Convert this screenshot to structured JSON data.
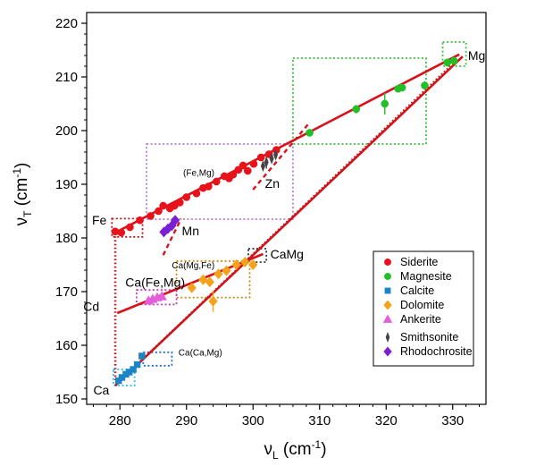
{
  "chart_data": {
    "type": "scatter",
    "xlabel": {
      "symbol": "ν",
      "sub": "L",
      "unit": " (cm",
      "sup": "-1",
      "close": ")"
    },
    "ylabel": {
      "symbol": "ν",
      "sub": "T",
      "unit": " (cm",
      "sup": "-1",
      "close": ")"
    },
    "xlim": [
      275,
      335
    ],
    "ylim": [
      149,
      222
    ],
    "xticks": [
      280,
      290,
      300,
      310,
      320,
      330
    ],
    "yticks": [
      150,
      160,
      170,
      180,
      190,
      200,
      210,
      220
    ],
    "xtick_labels": [
      "280",
      "290",
      "300",
      "310",
      "320",
      "330"
    ],
    "ytick_labels": [
      "150",
      "160",
      "170",
      "180",
      "190",
      "200",
      "210",
      "220"
    ],
    "grid": false,
    "legend_position": "bottom-right",
    "legend": [
      {
        "label": "Siderite",
        "marker": "circle",
        "color": "#e8121b"
      },
      {
        "label": "Magnesite",
        "marker": "circle",
        "color": "#23bf27"
      },
      {
        "label": "Calcite",
        "marker": "square",
        "color": "#1b84c7"
      },
      {
        "label": "Dolomite",
        "marker": "diamond",
        "color": "#f5a21b"
      },
      {
        "label": "Ankerite",
        "marker": "triangle",
        "color": "#e45ed9"
      },
      {
        "label": "Smithsonite",
        "marker": "thin-diamond",
        "color": "#444444"
      },
      {
        "label": "Rhodochrosite",
        "marker": "diamond",
        "color": "#7a1fd2"
      }
    ],
    "series": [
      {
        "name": "Siderite",
        "marker": "circle",
        "color": "#e8121b",
        "x": [
          279.3,
          280.2,
          281.5,
          283.0,
          284.6,
          285.8,
          286.5,
          287.5,
          288.2,
          289.0,
          290.0,
          291.5,
          292.5,
          293.3,
          294.5,
          295.7,
          296.4,
          297.0,
          297.8,
          298.5,
          299.2,
          300.1,
          301.2,
          302.4,
          303.5
        ],
        "y": [
          181.2,
          181.0,
          182.0,
          183.3,
          184.1,
          185.0,
          186.0,
          185.5,
          186.0,
          186.6,
          187.6,
          188.3,
          189.3,
          189.6,
          190.5,
          191.5,
          191.1,
          191.8,
          192.7,
          193.5,
          192.5,
          193.8,
          195.0,
          195.6,
          196.4
        ]
      },
      {
        "name": "Magnesite",
        "marker": "circle",
        "color": "#23bf27",
        "x": [
          308.5,
          315.5,
          319.8,
          321.8,
          322.4,
          325.8,
          329.2,
          330.2
        ],
        "y": [
          199.6,
          204.0,
          205.0,
          207.8,
          208.0,
          208.4,
          212.7,
          213.0
        ]
      },
      {
        "name": "Calcite",
        "marker": "square",
        "color": "#1b84c7",
        "x": [
          279.8,
          280.3,
          280.9,
          281.4,
          282.0,
          282.6,
          283.3
        ],
        "y": [
          153.4,
          154.0,
          154.6,
          155.0,
          155.5,
          156.4,
          158.0
        ]
      },
      {
        "name": "Dolomite",
        "marker": "diamond",
        "color": "#f5a21b",
        "x": [
          290.8,
          292.5,
          293.5,
          294.0,
          294.8,
          296.0,
          297.5,
          298.8,
          300.0
        ],
        "y": [
          170.7,
          172.2,
          171.8,
          168.2,
          173.3,
          173.9,
          175.0,
          175.5,
          175.0
        ]
      },
      {
        "name": "Ankerite",
        "marker": "triangle",
        "color": "#e45ed9",
        "x": [
          284.3,
          284.9,
          285.6,
          286.3
        ],
        "y": [
          168.3,
          168.6,
          168.9,
          169.1
        ]
      },
      {
        "name": "Smithsonite",
        "marker": "thin-diamond",
        "color": "#444444",
        "x": [
          301.5,
          302.0,
          302.8,
          303.4
        ],
        "y": [
          193.4,
          194.1,
          194.8,
          195.5
        ]
      },
      {
        "name": "Rhodochrosite",
        "marker": "diamond",
        "color": "#7a1fd2",
        "x": [
          286.6,
          287.2,
          287.8,
          288.3
        ],
        "y": [
          181.1,
          181.7,
          182.3,
          183.3
        ]
      }
    ],
    "error_bars": [
      {
        "x": 294.0,
        "y": 168.2,
        "yerr": 2.0,
        "color": "#f5a21b"
      },
      {
        "x": 319.8,
        "y": 205.0,
        "yerr": 2.0,
        "color": "#23bf27"
      },
      {
        "x": 315.5,
        "y": 204.0,
        "yerr": 0.8,
        "color": "#23bf27"
      },
      {
        "x": 325.8,
        "y": 208.4,
        "yerr": 0.8,
        "color": "#23bf27"
      },
      {
        "x": 302.0,
        "y": 194.1,
        "yerr": 1.2,
        "color": "#444444"
      }
    ],
    "lines": [
      {
        "style": "solid",
        "color": "#d8121b",
        "x": [
          279.0,
          331.0
        ],
        "y": [
          180.8,
          214.2
        ]
      },
      {
        "style": "solid",
        "color": "#d8121b",
        "x": [
          279.6,
          301.5
        ],
        "y": [
          166.0,
          177.0
        ]
      },
      {
        "style": "solid",
        "color": "#d8121b",
        "x": [
          279.3,
          331.5
        ],
        "y": [
          152.5,
          213.8
        ]
      },
      {
        "style": "dotted",
        "color": "#c01818",
        "x": [
          279.3,
          279.3
        ],
        "y": [
          181.0,
          153.5
        ]
      },
      {
        "style": "dotted",
        "color": "#c01818",
        "x": [
          279.3,
          330.5
        ],
        "y": [
          152.5,
          213.0
        ]
      },
      {
        "style": "dashed",
        "color": "#d8121b",
        "x": [
          286.5,
          289.2
        ],
        "y": [
          176.8,
          183.6
        ]
      },
      {
        "style": "dashed",
        "color": "#d8121b",
        "x": [
          300.0,
          308.5
        ],
        "y": [
          189.0,
          201.5
        ]
      }
    ],
    "regions": [
      {
        "color": "#b07fd9",
        "x": [
          284.0,
          306.0
        ],
        "y": [
          183.5,
          197.5
        ]
      },
      {
        "color": "#3cc13c",
        "x": [
          306.0,
          326.0
        ],
        "y": [
          197.5,
          213.5
        ]
      },
      {
        "color": "#3cc13c",
        "x": [
          328.5,
          332.0
        ],
        "y": [
          212.0,
          216.5
        ]
      },
      {
        "color": "#b3171a",
        "x": [
          278.8,
          283.4
        ],
        "y": [
          180.2,
          183.6
        ]
      },
      {
        "color": "#c98a1a",
        "x": [
          288.5,
          299.5
        ],
        "y": [
          168.9,
          175.7
        ]
      },
      {
        "color": "#333333",
        "x": [
          299.3,
          302.0
        ],
        "y": [
          175.5,
          178.0
        ]
      },
      {
        "color": "#cc38cc",
        "x": [
          282.5,
          288.5
        ],
        "y": [
          167.6,
          170.3
        ]
      },
      {
        "color": "#1b6fd0",
        "x": [
          283.5,
          287.8
        ],
        "y": [
          156.2,
          158.7
        ]
      },
      {
        "color": "#2bbbe9",
        "x": [
          279.0,
          282.2
        ],
        "y": [
          152.5,
          155.5
        ]
      }
    ],
    "annotations": [
      {
        "text": "Mg",
        "x": 332.3,
        "y": 213.2,
        "size": "large"
      },
      {
        "text": "(Fe,Mg)",
        "x": 289.5,
        "y": 191.6,
        "size": "small"
      },
      {
        "text": "Zn",
        "x": 301.8,
        "y": 189.3,
        "size": "large"
      },
      {
        "text": "Fe",
        "x": 275.8,
        "y": 182.5,
        "size": "large"
      },
      {
        "text": "Mn",
        "x": 289.3,
        "y": 180.5,
        "size": "large"
      },
      {
        "text": "CaMg",
        "x": 302.6,
        "y": 176.2,
        "size": "large"
      },
      {
        "text": "Ca(Mg,Fe)",
        "x": 287.8,
        "y": 174.3,
        "size": "small"
      },
      {
        "text": "Ca(Fe,Mg)",
        "x": 280.8,
        "y": 170.9,
        "size": "large"
      },
      {
        "text": "Cd",
        "x": 274.5,
        "y": 166.4,
        "size": "large"
      },
      {
        "text": "Ca(Ca,Mg)",
        "x": 288.8,
        "y": 158.1,
        "size": "small"
      },
      {
        "text": "Ca",
        "x": 276.0,
        "y": 150.8,
        "size": "large"
      }
    ]
  }
}
